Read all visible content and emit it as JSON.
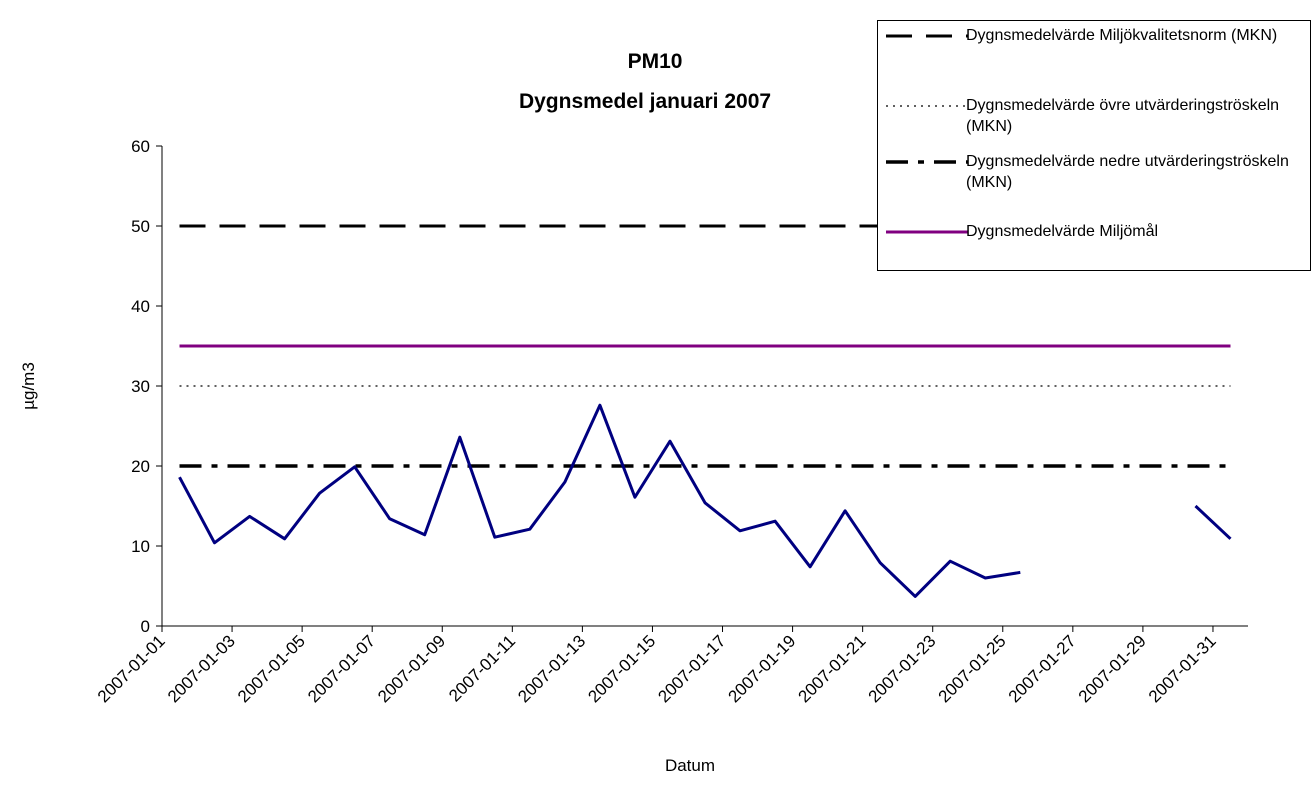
{
  "chart_data": {
    "type": "line",
    "title": "PM10",
    "subtitle": "Dygnsmedel januari 2007",
    "x_label": "Datum",
    "y_label": "µg/m3",
    "categories": [
      "2007-01-01",
      null,
      "2007-01-03",
      null,
      "2007-01-05",
      null,
      "2007-01-07",
      null,
      "2007-01-09",
      null,
      "2007-01-11",
      null,
      "2007-01-13",
      null,
      "2007-01-15",
      null,
      "2007-01-17",
      null,
      "2007-01-19",
      null,
      "2007-01-21",
      null,
      "2007-01-23",
      null,
      "2007-01-25",
      null,
      "2007-01-27",
      null,
      "2007-01-29",
      null,
      "2007-01-31"
    ],
    "ylim": [
      0,
      60
    ],
    "yticks": [
      0,
      10,
      20,
      30,
      40,
      50,
      60
    ],
    "grid": false,
    "legend": "top-right",
    "series": [
      {
        "color": "#000080",
        "dash": "solid",
        "in_legend": false,
        "values": [
          18.6,
          10.4,
          13.7,
          10.9,
          16.6,
          19.9,
          13.4,
          11.4,
          23.6,
          11.1,
          12.1,
          18,
          27.6,
          16.1,
          23.1,
          15.4,
          11.9,
          13.1,
          7.4,
          14.4,
          7.9,
          3.7,
          8.1,
          6,
          6.7,
          null,
          null,
          null,
          null,
          15,
          10.9
        ]
      },
      {
        "name": "Dygnsmedelvärde Miljökvalitetsnorm (MKN)",
        "color": "#000000",
        "dash": "long",
        "in_legend": true,
        "values": [
          50,
          50,
          50,
          50,
          50,
          50,
          50,
          50,
          50,
          50,
          50,
          50,
          50,
          50,
          50,
          50,
          50,
          50,
          50,
          50,
          50,
          50,
          50,
          50,
          50,
          50,
          50,
          50,
          50,
          50,
          50
        ]
      },
      {
        "name": "Dygnsmedelvärde övre utvärderingströskeln (MKN)",
        "color": "#000000",
        "dash": "dotted",
        "in_legend": true,
        "values": [
          30,
          30,
          30,
          30,
          30,
          30,
          30,
          30,
          30,
          30,
          30,
          30,
          30,
          30,
          30,
          30,
          30,
          30,
          30,
          30,
          30,
          30,
          30,
          30,
          30,
          30,
          30,
          30,
          30,
          30,
          30
        ]
      },
      {
        "name": "Dygnsmedelvärde nedre utvärderingströskeln (MKN)",
        "color": "#000000",
        "dash": "dashdot",
        "in_legend": true,
        "values": [
          20,
          20,
          20,
          20,
          20,
          20,
          20,
          20,
          20,
          20,
          20,
          20,
          20,
          20,
          20,
          20,
          20,
          20,
          20,
          20,
          20,
          20,
          20,
          20,
          20,
          20,
          20,
          20,
          20,
          20,
          20
        ]
      },
      {
        "name": "Dygnsmedelvärde Miljömål",
        "color": "#800080",
        "dash": "solid",
        "in_legend": true,
        "values": [
          35,
          35,
          35,
          35,
          35,
          35,
          35,
          35,
          35,
          35,
          35,
          35,
          35,
          35,
          35,
          35,
          35,
          35,
          35,
          35,
          35,
          35,
          35,
          35,
          35,
          35,
          35,
          35,
          35,
          35,
          35
        ]
      }
    ]
  }
}
